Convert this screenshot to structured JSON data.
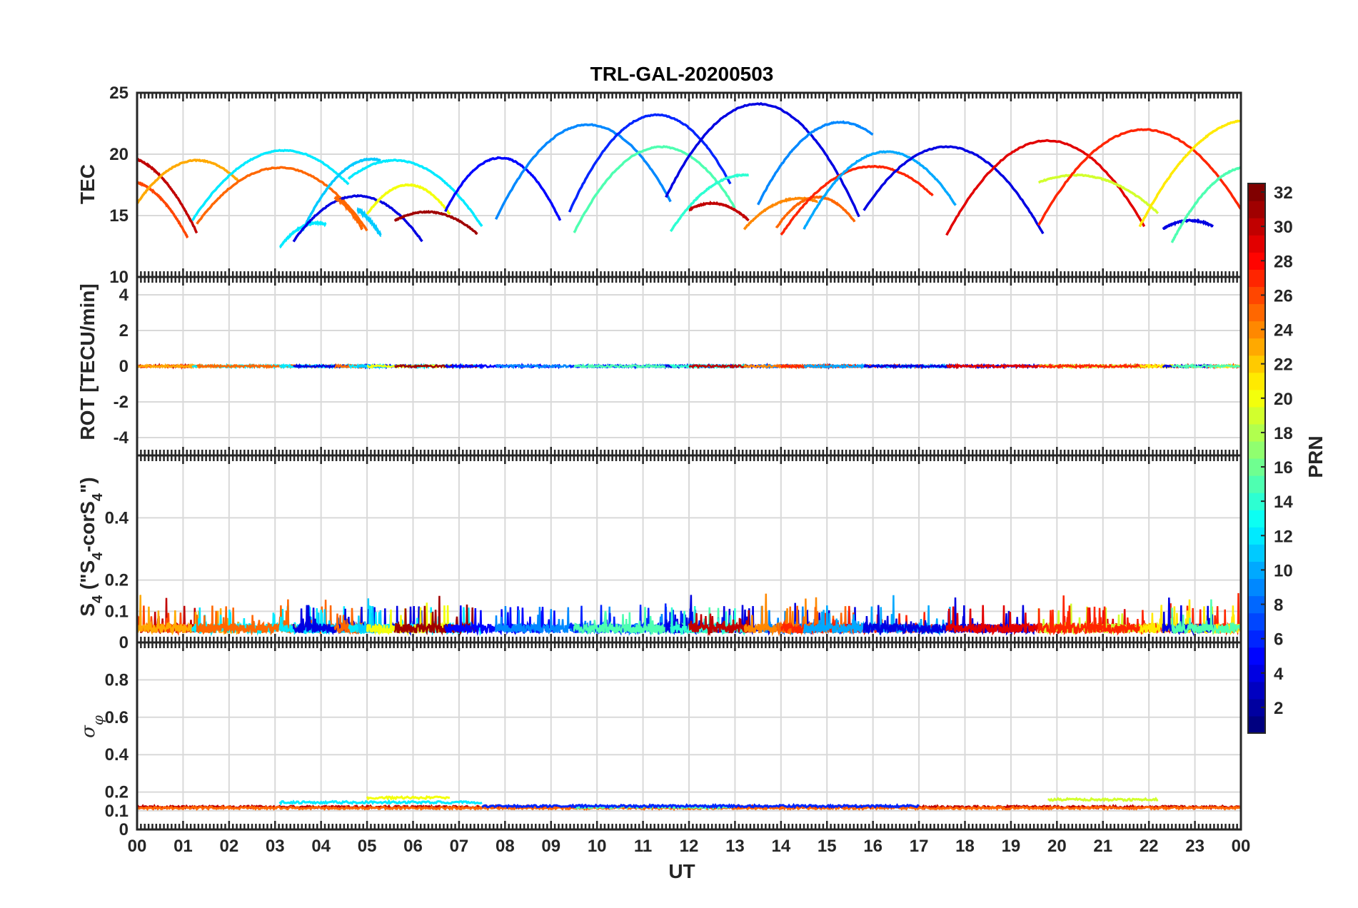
{
  "chart_data": {
    "type": "line",
    "title": "TRL-GAL-20200503",
    "xlabel": "UT",
    "x_ticks": [
      "00",
      "01",
      "02",
      "03",
      "04",
      "05",
      "06",
      "07",
      "08",
      "09",
      "10",
      "11",
      "12",
      "13",
      "14",
      "15",
      "16",
      "17",
      "18",
      "19",
      "20",
      "21",
      "22",
      "23",
      "00"
    ],
    "xlim": [
      0,
      24
    ],
    "colorbar": {
      "label": "PRN",
      "range": [
        1,
        32
      ],
      "ticks": [
        "2",
        "4",
        "6",
        "8",
        "10",
        "12",
        "14",
        "16",
        "18",
        "20",
        "22",
        "24",
        "26",
        "28",
        "30",
        "32"
      ],
      "colormap": "jet"
    },
    "panels": [
      {
        "id": "tec",
        "ylabel": "TEC",
        "ylim": [
          10,
          25
        ],
        "yticks": [
          "10",
          "15",
          "20",
          "25"
        ],
        "grid": true,
        "series": [
          {
            "prn": 30,
            "start": 0.0,
            "end": 1.3,
            "peak_t": -0.3,
            "peak": 19.8,
            "floor": 13.6
          },
          {
            "prn": 26,
            "start": 0.0,
            "end": 1.1,
            "peak_t": -0.2,
            "peak": 17.8,
            "floor": 13.2
          },
          {
            "prn": 23,
            "start": 0.0,
            "end": 2.2,
            "peak_t": 1.3,
            "peak": 19.5,
            "floor": 16.0
          },
          {
            "prn": 12,
            "start": 1.2,
            "end": 4.6,
            "peak_t": 3.2,
            "peak": 20.3,
            "floor": 14.6
          },
          {
            "prn": 25,
            "start": 1.3,
            "end": 5.0,
            "peak_t": 3.1,
            "peak": 18.9,
            "floor": 13.8
          },
          {
            "prn": 12,
            "start": 3.1,
            "end": 4.1,
            "peak_t": 3.9,
            "peak": 14.4,
            "floor": 12.4
          },
          {
            "prn": 11,
            "start": 3.6,
            "end": 5.3,
            "peak_t": 5.1,
            "peak": 19.6,
            "floor": 13.8
          },
          {
            "prn": 4,
            "start": 3.4,
            "end": 6.2,
            "peak_t": 4.8,
            "peak": 16.6,
            "floor": 12.9
          },
          {
            "prn": 25,
            "start": 4.3,
            "end": 4.9,
            "peak_t": 4.0,
            "peak": 16.8,
            "floor": 13.9
          },
          {
            "prn": 12,
            "start": 4.6,
            "end": 7.5,
            "peak_t": 5.6,
            "peak": 19.5,
            "floor": 14.1
          },
          {
            "prn": 11,
            "start": 4.8,
            "end": 5.3,
            "peak_t": 4.4,
            "peak": 16.0,
            "floor": 13.4
          },
          {
            "prn": 20,
            "start": 5.0,
            "end": 6.8,
            "peak_t": 5.9,
            "peak": 17.5,
            "floor": 15.1
          },
          {
            "prn": 31,
            "start": 5.6,
            "end": 7.4,
            "peak_t": 6.3,
            "peak": 15.3,
            "floor": 13.5
          },
          {
            "prn": 5,
            "start": 6.7,
            "end": 9.2,
            "peak_t": 7.9,
            "peak": 19.7,
            "floor": 14.6
          },
          {
            "prn": 9,
            "start": 7.8,
            "end": 11.6,
            "peak_t": 9.8,
            "peak": 22.4,
            "floor": 14.7
          },
          {
            "prn": 6,
            "start": 9.4,
            "end": 12.9,
            "peak_t": 11.3,
            "peak": 23.2,
            "floor": 15.3
          },
          {
            "prn": 15,
            "start": 9.5,
            "end": 13.0,
            "peak_t": 11.4,
            "peak": 20.6,
            "floor": 13.6
          },
          {
            "prn": 4,
            "start": 11.5,
            "end": 15.7,
            "peak_t": 13.5,
            "peak": 24.1,
            "floor": 14.9
          },
          {
            "prn": 14,
            "start": 11.6,
            "end": 13.3,
            "peak_t": 13.2,
            "peak": 18.3,
            "floor": 13.7
          },
          {
            "prn": 30,
            "start": 12.0,
            "end": 13.3,
            "peak_t": 12.5,
            "peak": 16.0,
            "floor": 14.6
          },
          {
            "prn": 9,
            "start": 13.5,
            "end": 16.0,
            "peak_t": 15.3,
            "peak": 22.6,
            "floor": 15.9
          },
          {
            "prn": 24,
            "start": 13.2,
            "end": 14.8,
            "peak_t": 14.4,
            "peak": 16.4,
            "floor": 13.9
          },
          {
            "prn": 25,
            "start": 13.9,
            "end": 15.6,
            "peak_t": 14.8,
            "peak": 16.5,
            "floor": 14.0
          },
          {
            "prn": 27,
            "start": 14.0,
            "end": 17.3,
            "peak_t": 16.0,
            "peak": 19.0,
            "floor": 13.4
          },
          {
            "prn": 10,
            "start": 14.5,
            "end": 17.8,
            "peak_t": 16.3,
            "peak": 20.2,
            "floor": 13.9
          },
          {
            "prn": 4,
            "start": 15.8,
            "end": 19.7,
            "peak_t": 17.6,
            "peak": 20.6,
            "floor": 13.5
          },
          {
            "prn": 29,
            "start": 17.6,
            "end": 21.9,
            "peak_t": 19.8,
            "peak": 21.1,
            "floor": 13.4
          },
          {
            "prn": 19,
            "start": 19.6,
            "end": 22.2,
            "peak_t": 20.4,
            "peak": 18.3,
            "floor": 15.2
          },
          {
            "prn": 27,
            "start": 19.6,
            "end": 24.0,
            "peak_t": 21.9,
            "peak": 22.0,
            "floor": 14.2
          },
          {
            "prn": 21,
            "start": 21.8,
            "end": 24.0,
            "peak_t": 24.2,
            "peak": 22.8,
            "floor": 14.1
          },
          {
            "prn": 4,
            "start": 22.3,
            "end": 23.4,
            "peak_t": 22.9,
            "peak": 14.6,
            "floor": 13.9
          },
          {
            "prn": 15,
            "start": 22.5,
            "end": 24.0,
            "peak_t": 24.2,
            "peak": 19.0,
            "floor": 12.8
          }
        ]
      },
      {
        "id": "rot",
        "ylabel": "ROT [TECU/min]",
        "ylim": [
          -5,
          5
        ],
        "yticks": [
          "-4",
          "-2",
          "0",
          "2",
          "4"
        ],
        "grid": true,
        "series": {
          "baseline": 0.0,
          "noise_amplitude": 0.12
        }
      },
      {
        "id": "s4",
        "ylabel": "S_4 (\"S_4-corS_4\")",
        "ylim": [
          0,
          0.6
        ],
        "yticks": [
          "0",
          "0.1",
          "0.2",
          "0.4"
        ],
        "grid": true,
        "series": {
          "baseline": 0.03,
          "typical_peaks": 0.1,
          "max_value": 0.16
        }
      },
      {
        "id": "sigma",
        "ylabel": "σ_φ",
        "ylim": [
          0,
          1
        ],
        "yticks": [
          "0",
          "0.1",
          "0.2",
          "0.4",
          "0.6",
          "0.8"
        ],
        "grid": true,
        "series": [
          {
            "prn": 30,
            "start": 0.0,
            "end": 24.0,
            "value": 0.12
          },
          {
            "prn": 25,
            "start": 0.0,
            "end": 24.0,
            "value": 0.115
          },
          {
            "prn": 12,
            "start": 3.1,
            "end": 7.5,
            "value": 0.145
          },
          {
            "prn": 20,
            "start": 5.0,
            "end": 6.8,
            "value": 0.17
          },
          {
            "prn": 19,
            "start": 19.8,
            "end": 22.2,
            "value": 0.16
          },
          {
            "prn": 15,
            "start": 9.5,
            "end": 13.0,
            "value": 0.12
          },
          {
            "prn": 6,
            "start": 7.5,
            "end": 17.0,
            "value": 0.125
          }
        ]
      }
    ]
  }
}
